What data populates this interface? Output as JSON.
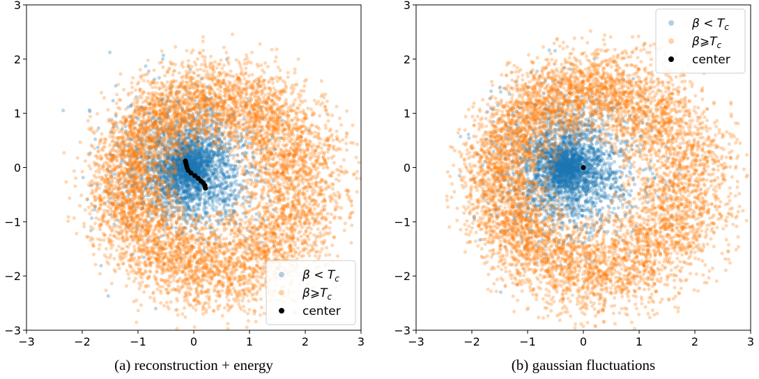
{
  "chart_data": [
    {
      "type": "scatter",
      "caption": "(a) reconstruction + energy",
      "xlim": [
        -3,
        3
      ],
      "ylim": [
        -3,
        3
      ],
      "xticks": [
        -3,
        -2,
        -1,
        0,
        1,
        2,
        3
      ],
      "yticks": [
        -3,
        -2,
        -1,
        0,
        1,
        2,
        3
      ],
      "xtick_labels": [
        "−3",
        "−2",
        "−1",
        "0",
        "1",
        "2",
        "3"
      ],
      "ytick_labels": [
        "−3",
        "−2",
        "−1",
        "0",
        "1",
        "2",
        "3"
      ],
      "legend_position": "lower-right",
      "series": [
        {
          "name": "β < T",
          "name_sub": "c",
          "color": "#1f77b4",
          "opacity": 0.3,
          "distribution": "disk",
          "center": [
            -0.1,
            0.0
          ],
          "radius": 1.2,
          "count": 3200
        },
        {
          "name": "β⩾T",
          "name_sub": "c",
          "color": "#ff7f0e",
          "opacity": 0.3,
          "distribution": "ring",
          "center": [
            0.2,
            -0.2
          ],
          "radius_inner": 1.0,
          "radius_outer": 2.9,
          "peak_radius": 1.6,
          "count": 6500
        },
        {
          "name": "center",
          "color": "#000000",
          "opacity": 1.0,
          "points": [
            [
              -0.15,
              0.12
            ],
            [
              -0.14,
              0.08
            ],
            [
              -0.13,
              0.04
            ],
            [
              -0.12,
              0.0
            ],
            [
              -0.1,
              -0.05
            ],
            [
              -0.05,
              -0.1
            ],
            [
              0.02,
              -0.15
            ],
            [
              0.08,
              -0.2
            ],
            [
              0.13,
              -0.25
            ],
            [
              0.17,
              -0.28
            ],
            [
              0.2,
              -0.33
            ],
            [
              0.21,
              -0.38
            ]
          ]
        }
      ]
    },
    {
      "type": "scatter",
      "caption": "(b) gaussian fluctuations",
      "xlim": [
        -3,
        3
      ],
      "ylim": [
        -3,
        3
      ],
      "xticks": [
        -3,
        -2,
        -1,
        0,
        1,
        2,
        3
      ],
      "yticks": [
        -3,
        -2,
        -1,
        0,
        1,
        2,
        3
      ],
      "xtick_labels": [
        "−3",
        "−2",
        "−1",
        "0",
        "1",
        "2",
        "3"
      ],
      "ytick_labels": [
        "−3",
        "−2",
        "−1",
        "0",
        "1",
        "2",
        "3"
      ],
      "legend_position": "upper-right",
      "series": [
        {
          "name": "β < T",
          "name_sub": "c",
          "color": "#1f77b4",
          "opacity": 0.3,
          "distribution": "disk",
          "center": [
            -0.3,
            0.0
          ],
          "radius": 1.25,
          "count": 3200
        },
        {
          "name": "β⩾T",
          "name_sub": "c",
          "color": "#ff7f0e",
          "opacity": 0.3,
          "distribution": "ring",
          "center": [
            0.0,
            -0.1
          ],
          "radius_inner": 1.0,
          "radius_outer": 2.8,
          "peak_radius": 1.7,
          "count": 6500
        },
        {
          "name": "center",
          "color": "#000000",
          "opacity": 1.0,
          "points": [
            [
              0.0,
              0.0
            ]
          ]
        }
      ]
    }
  ]
}
